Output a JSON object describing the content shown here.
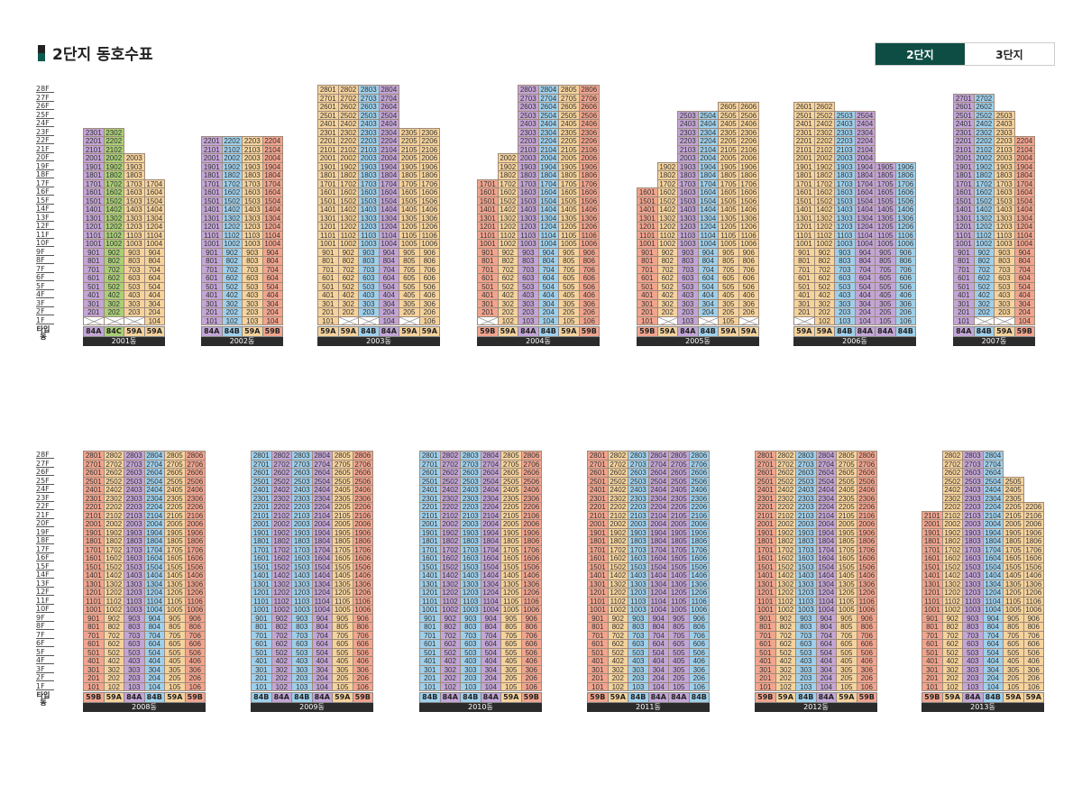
{
  "title": "2단지 동호수표",
  "tabs": [
    {
      "label": "2단지",
      "active": true
    },
    {
      "label": "3단지",
      "active": false
    }
  ],
  "floors": [
    "28F",
    "27F",
    "26F",
    "25F",
    "24F",
    "23F",
    "22F",
    "21F",
    "20F",
    "19F",
    "18F",
    "17F",
    "16F",
    "15F",
    "14F",
    "13F",
    "12F",
    "11F",
    "10F",
    "9F",
    "8F",
    "7F",
    "6F",
    "5F",
    "4F",
    "3F",
    "2F",
    "1F"
  ],
  "type_header": "타입 동",
  "colors": {
    "59A": "#f6d39c",
    "59B": "#f1a48e",
    "84A": "#c3a5d6",
    "84B": "#9ed0ec",
    "84C": "#a9cf76"
  },
  "buildings": [
    {
      "name": "2001동",
      "row": 0,
      "types": [
        "84A",
        "84C",
        "59A",
        "59A"
      ],
      "tops": [
        23,
        23,
        20,
        17
      ],
      "pil": [
        1,
        1,
        1,
        0
      ]
    },
    {
      "name": "2002동",
      "row": 0,
      "types": [
        "84A",
        "84B",
        "59A",
        "59B"
      ],
      "tops": [
        22,
        22,
        22,
        22
      ],
      "pil": [
        0,
        0,
        0,
        0
      ]
    },
    {
      "name": "2003동",
      "row": 0,
      "types": [
        "59A",
        "59A",
        "84B",
        "84A",
        "59A",
        "59A"
      ],
      "tops": [
        28,
        28,
        28,
        28,
        23,
        23
      ],
      "pil": [
        0,
        1,
        1,
        0,
        1,
        0
      ]
    },
    {
      "name": "2004동",
      "row": 0,
      "types": [
        "59B",
        "59A",
        "84A",
        "84B",
        "59A",
        "59B"
      ],
      "tops": [
        17,
        20,
        28,
        28,
        28,
        28
      ],
      "pil": [
        1,
        0,
        0,
        0,
        0,
        0
      ]
    },
    {
      "name": "2005동",
      "row": 0,
      "types": [
        "59B",
        "59A",
        "84A",
        "84B",
        "59A",
        "59A"
      ],
      "tops": [
        16,
        19,
        25,
        25,
        26,
        26
      ],
      "pil": [
        0,
        1,
        0,
        1,
        0,
        1
      ]
    },
    {
      "name": "2006동",
      "row": 0,
      "types": [
        "59A",
        "59A",
        "84B",
        "84A",
        "84A",
        "84B"
      ],
      "tops": [
        26,
        26,
        25,
        25,
        19,
        19
      ],
      "pil": [
        1,
        0,
        0,
        0,
        0,
        0
      ]
    },
    {
      "name": "2007동",
      "row": 0,
      "types": [
        "84A",
        "84B",
        "59A",
        "59B"
      ],
      "tops": [
        27,
        27,
        25,
        22
      ],
      "pil": [
        0,
        1,
        1,
        0
      ]
    },
    {
      "name": "2008동",
      "row": 1,
      "types": [
        "59B",
        "59A",
        "84A",
        "84B",
        "59A",
        "59B"
      ],
      "tops": [
        28,
        28,
        28,
        28,
        28,
        28
      ],
      "pil": [
        0,
        0,
        0,
        0,
        0,
        0
      ]
    },
    {
      "name": "2009동",
      "row": 1,
      "types": [
        "84B",
        "84A",
        "84B",
        "84A",
        "59A",
        "59B"
      ],
      "tops": [
        28,
        28,
        28,
        28,
        28,
        28
      ],
      "pil": [
        0,
        0,
        0,
        0,
        0,
        0
      ]
    },
    {
      "name": "2010동",
      "row": 1,
      "types": [
        "84B",
        "84A",
        "84B",
        "84A",
        "59A",
        "59B"
      ],
      "tops": [
        28,
        28,
        28,
        28,
        28,
        28
      ],
      "pil": [
        0,
        0,
        0,
        0,
        0,
        0
      ]
    },
    {
      "name": "2011동",
      "row": 1,
      "types": [
        "59B",
        "59A",
        "84B",
        "84A",
        "84A",
        "84B"
      ],
      "tops": [
        28,
        28,
        28,
        28,
        28,
        28
      ],
      "pil": [
        0,
        0,
        0,
        0,
        0,
        0
      ]
    },
    {
      "name": "2012동",
      "row": 1,
      "types": [
        "59B",
        "59A",
        "84B",
        "84A",
        "59A",
        "59B"
      ],
      "tops": [
        28,
        28,
        28,
        28,
        28,
        28
      ],
      "pil": [
        0,
        0,
        0,
        0,
        0,
        0
      ]
    },
    {
      "name": "2013동",
      "row": 1,
      "types": [
        "59B",
        "59A",
        "84A",
        "84B",
        "59A",
        "59A"
      ],
      "tops": [
        21,
        28,
        28,
        28,
        25,
        22
      ],
      "pil": [
        0,
        0,
        0,
        0,
        0,
        0
      ]
    }
  ]
}
